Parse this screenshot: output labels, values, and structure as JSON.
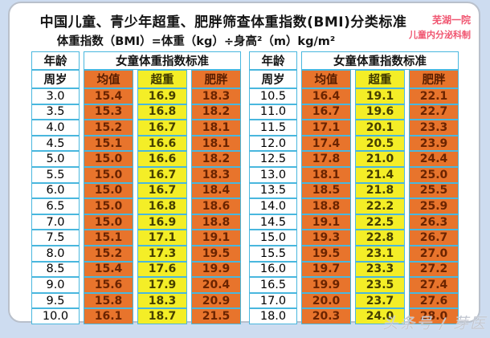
{
  "title": "中国儿童、青少年超重、肥胖筛查体重指数(BMI)分类标准",
  "subtitle": "体重指数（BMI）=体重（kg）÷身高²（m）kg/m²",
  "credit": {
    "line1": "芜湖一院",
    "line2": "儿童内分泌科制"
  },
  "watermark": "头条号 / 芽医",
  "colors": {
    "page_background": "#cddcf0",
    "card_background": "#ffffff",
    "table_border_blue": "#49b7de",
    "cell_orange": "#e8742c",
    "cell_yellow": "#f4ee27",
    "credit_red": "#f05570",
    "watermark_gray": "#c2c7d1"
  },
  "tables": [
    {
      "age_header": "年龄",
      "age_subheader": "周岁",
      "group_header": "女童体重指数标准",
      "columns": [
        "均值",
        "超重",
        "肥胖"
      ],
      "rows": [
        {
          "age": "3.0",
          "mean": "15.4",
          "overweight": "16.9",
          "obese": "18.3"
        },
        {
          "age": "3.5",
          "mean": "15.3",
          "overweight": "16.8",
          "obese": "18.2"
        },
        {
          "age": "4.0",
          "mean": "15.2",
          "overweight": "16.7",
          "obese": "18.1"
        },
        {
          "age": "4.5",
          "mean": "15.1",
          "overweight": "16.6",
          "obese": "18.1"
        },
        {
          "age": "5.0",
          "mean": "15.0",
          "overweight": "16.6",
          "obese": "18.2"
        },
        {
          "age": "5.5",
          "mean": "15.0",
          "overweight": "16.7",
          "obese": "18.3"
        },
        {
          "age": "6.0",
          "mean": "15.0",
          "overweight": "16.7",
          "obese": "18.4"
        },
        {
          "age": "6.5",
          "mean": "15.0",
          "overweight": "16.8",
          "obese": "18.6"
        },
        {
          "age": "7.0",
          "mean": "15.0",
          "overweight": "16.9",
          "obese": "18.8"
        },
        {
          "age": "7.5",
          "mean": "15.1",
          "overweight": "17.1",
          "obese": "19.1"
        },
        {
          "age": "8.0",
          "mean": "15.2",
          "overweight": "17.3",
          "obese": "19.5"
        },
        {
          "age": "8.5",
          "mean": "15.4",
          "overweight": "17.6",
          "obese": "19.9"
        },
        {
          "age": "9.0",
          "mean": "15.6",
          "overweight": "17.9",
          "obese": "20.4"
        },
        {
          "age": "9.5",
          "mean": "15.8",
          "overweight": "18.3",
          "obese": "20.9"
        },
        {
          "age": "10.0",
          "mean": "16.1",
          "overweight": "18.7",
          "obese": "21.5"
        }
      ]
    },
    {
      "age_header": "年龄",
      "age_subheader": "周岁",
      "group_header": "女童体重指数标准",
      "columns": [
        "均值",
        "超重",
        "肥胖"
      ],
      "rows": [
        {
          "age": "10.5",
          "mean": "16.4",
          "overweight": "19.1",
          "obese": "22.1"
        },
        {
          "age": "11.0",
          "mean": "16.7",
          "overweight": "19.6",
          "obese": "22.7"
        },
        {
          "age": "11.5",
          "mean": "17.1",
          "overweight": "20.1",
          "obese": "23.3"
        },
        {
          "age": "12.0",
          "mean": "17.4",
          "overweight": "20.5",
          "obese": "23.9"
        },
        {
          "age": "12.5",
          "mean": "17.8",
          "overweight": "21.0",
          "obese": "24.4"
        },
        {
          "age": "13.0",
          "mean": "18.1",
          "overweight": "21.4",
          "obese": "25.0"
        },
        {
          "age": "13.5",
          "mean": "18.5",
          "overweight": "21.8",
          "obese": "25.5"
        },
        {
          "age": "14.0",
          "mean": "18.8",
          "overweight": "22.2",
          "obese": "25.9"
        },
        {
          "age": "14.5",
          "mean": "19.1",
          "overweight": "22.5",
          "obese": "26.3"
        },
        {
          "age": "15.0",
          "mean": "19.3",
          "overweight": "22.8",
          "obese": "26.7"
        },
        {
          "age": "15.5",
          "mean": "19.5",
          "overweight": "23.1",
          "obese": "27.0"
        },
        {
          "age": "16.0",
          "mean": "19.7",
          "overweight": "23.3",
          "obese": "27.2"
        },
        {
          "age": "16.5",
          "mean": "19.9",
          "overweight": "23.5",
          "obese": "27.4"
        },
        {
          "age": "17.0",
          "mean": "20.0",
          "overweight": "23.7",
          "obese": "27.6"
        },
        {
          "age": "18.0",
          "mean": "20.3",
          "overweight": "24.0",
          "obese": "28.0"
        }
      ]
    }
  ],
  "chart_data": {
    "type": "table",
    "title": "中国儿童、青少年超重、肥胖筛查体重指数(BMI)分类标准",
    "subtitle": "体重指数（BMI）=体重（kg）÷身高²（m）kg/m²",
    "unit": "kg/m²",
    "group": "女童体重指数标准",
    "columns": [
      "年龄周岁",
      "均值",
      "超重",
      "肥胖"
    ],
    "x": [
      3.0,
      3.5,
      4.0,
      4.5,
      5.0,
      5.5,
      6.0,
      6.5,
      7.0,
      7.5,
      8.0,
      8.5,
      9.0,
      9.5,
      10.0,
      10.5,
      11.0,
      11.5,
      12.0,
      12.5,
      13.0,
      13.5,
      14.0,
      14.5,
      15.0,
      15.5,
      16.0,
      16.5,
      17.0,
      18.0
    ],
    "series": [
      {
        "name": "均值",
        "values": [
          15.4,
          15.3,
          15.2,
          15.1,
          15.0,
          15.0,
          15.0,
          15.0,
          15.0,
          15.1,
          15.2,
          15.4,
          15.6,
          15.8,
          16.1,
          16.4,
          16.7,
          17.1,
          17.4,
          17.8,
          18.1,
          18.5,
          18.8,
          19.1,
          19.3,
          19.5,
          19.7,
          19.9,
          20.0,
          20.3
        ]
      },
      {
        "name": "超重",
        "values": [
          16.9,
          16.8,
          16.7,
          16.6,
          16.6,
          16.7,
          16.7,
          16.8,
          16.9,
          17.1,
          17.3,
          17.6,
          17.9,
          18.3,
          18.7,
          19.1,
          19.6,
          20.1,
          20.5,
          21.0,
          21.4,
          21.8,
          22.2,
          22.5,
          22.8,
          23.1,
          23.3,
          23.5,
          23.7,
          24.0
        ]
      },
      {
        "name": "肥胖",
        "values": [
          18.3,
          18.2,
          18.1,
          18.1,
          18.2,
          18.3,
          18.4,
          18.6,
          18.8,
          19.1,
          19.5,
          19.9,
          20.4,
          20.9,
          21.5,
          22.1,
          22.7,
          23.3,
          23.9,
          24.4,
          25.0,
          25.5,
          25.9,
          26.3,
          26.7,
          27.0,
          27.2,
          27.4,
          27.6,
          28.0
        ]
      }
    ]
  }
}
